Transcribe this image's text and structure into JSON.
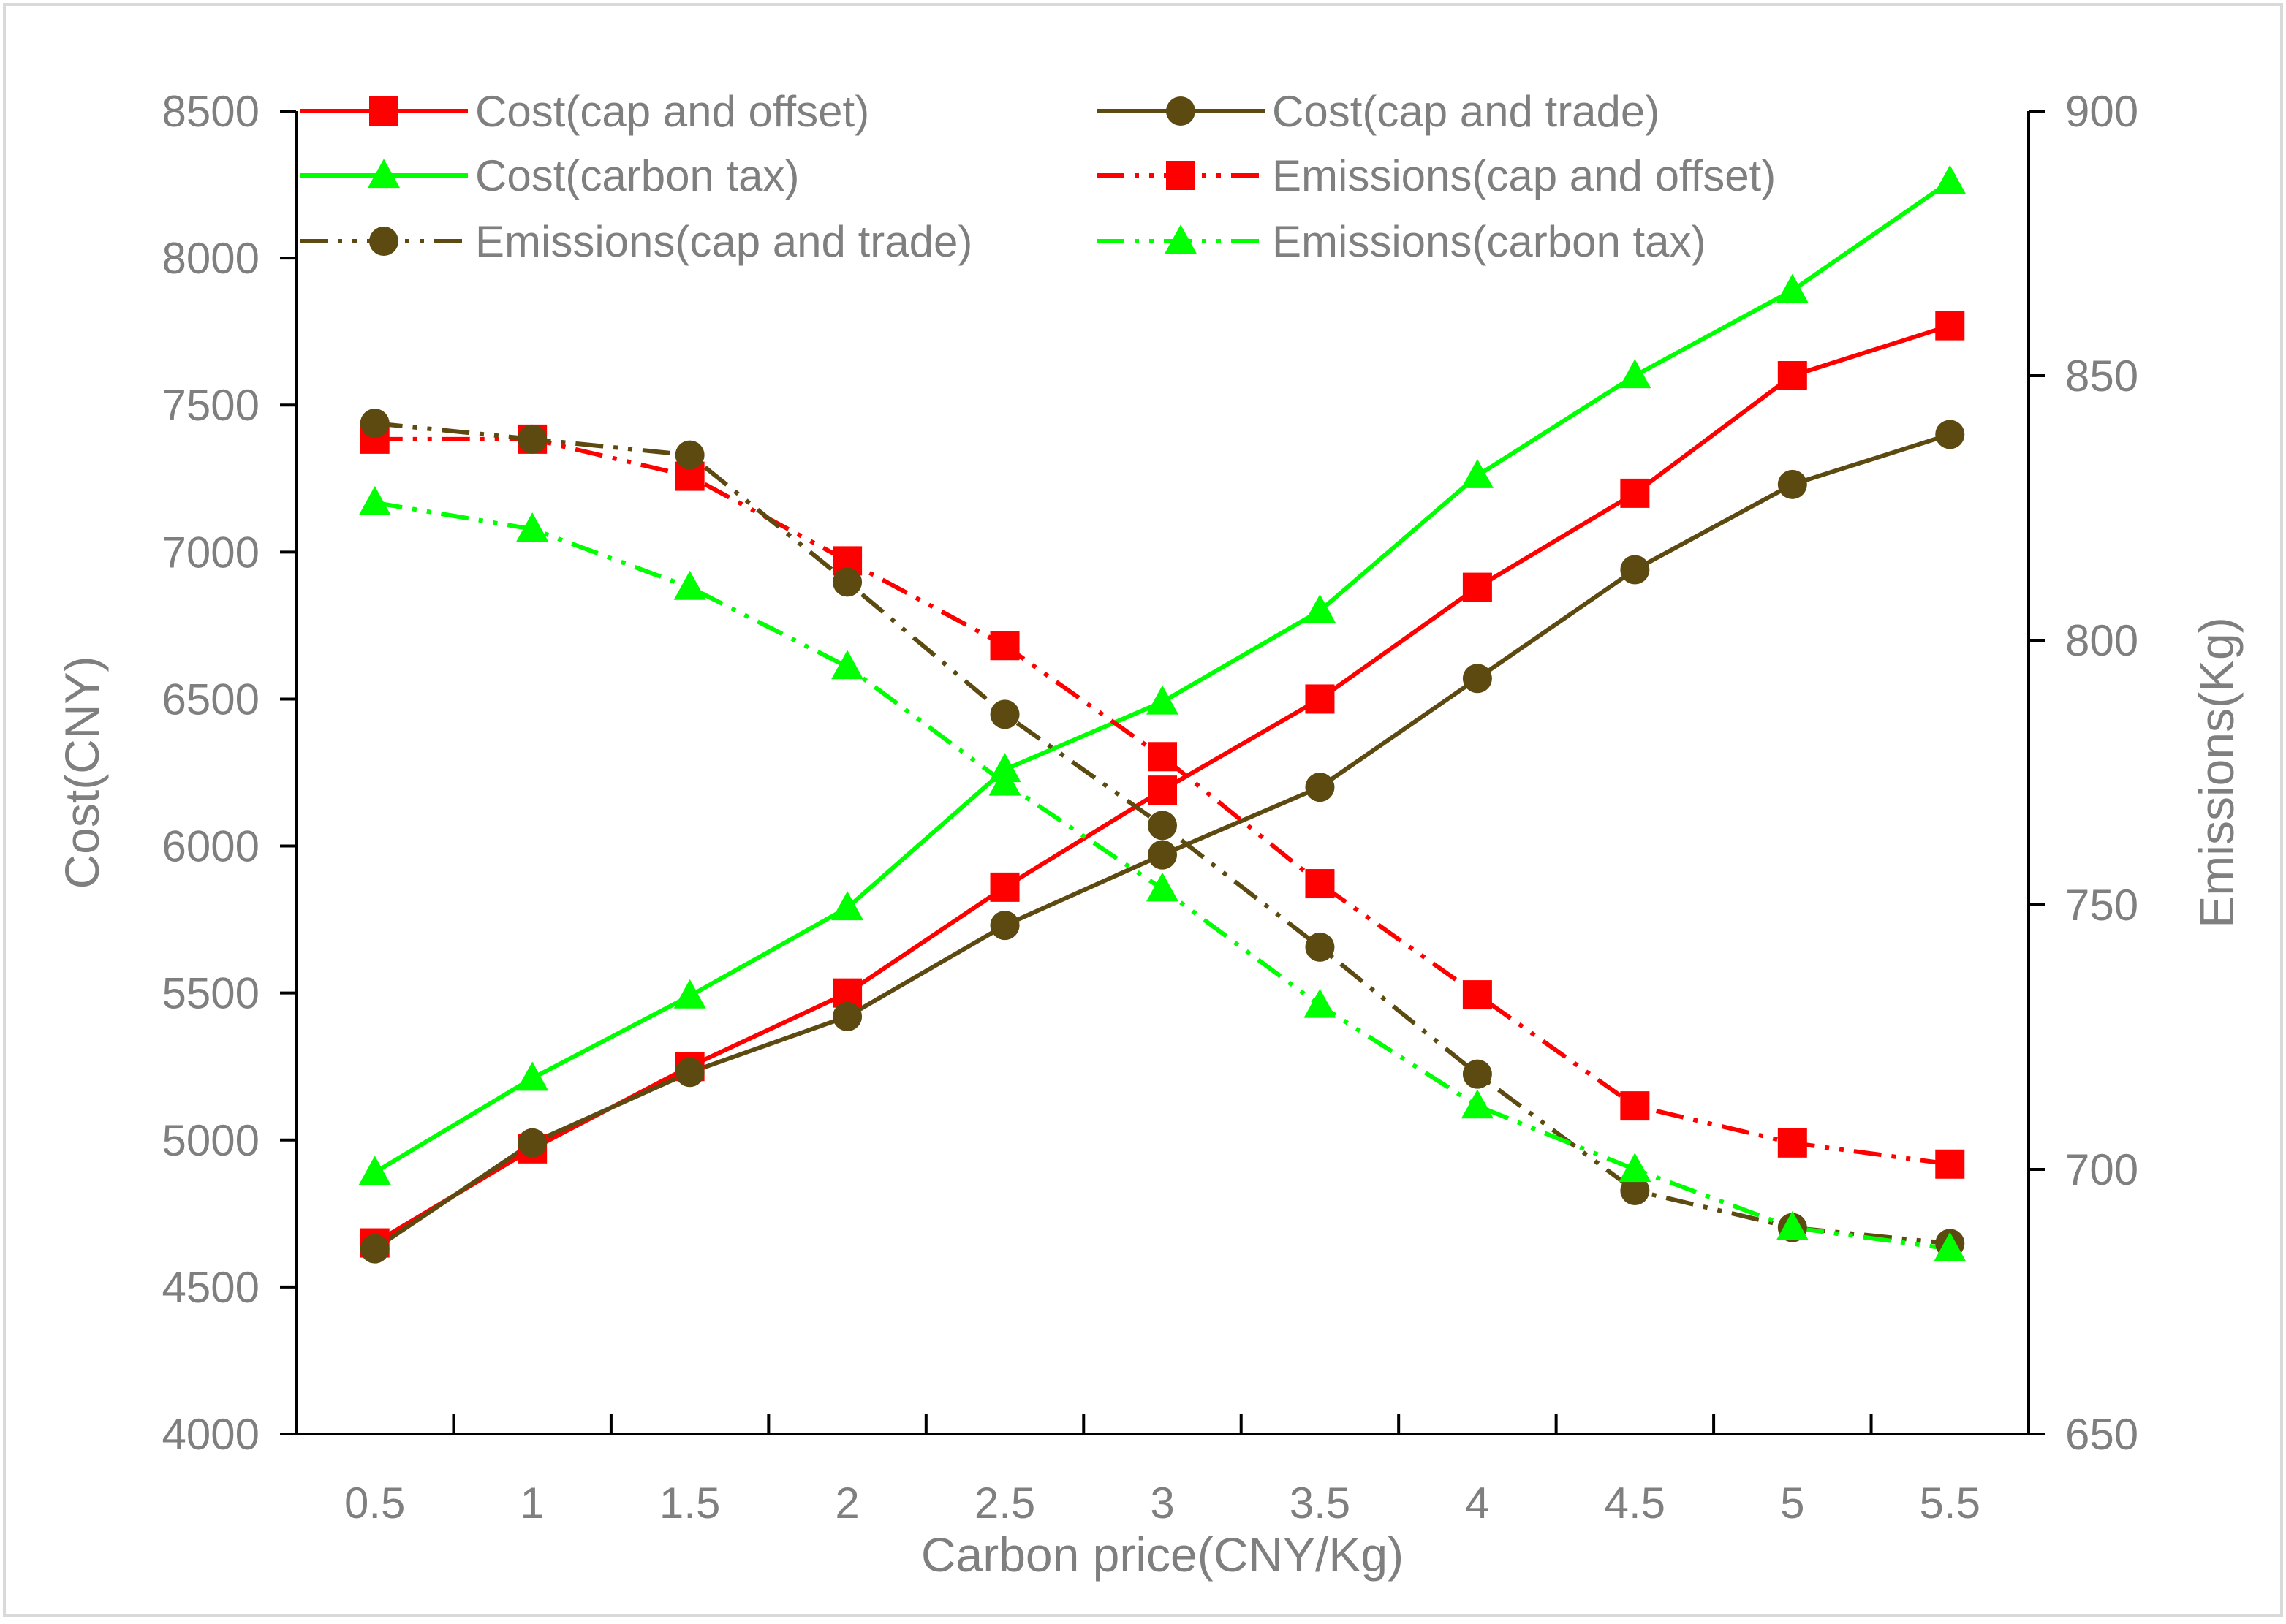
{
  "chart_data": {
    "type": "line",
    "title": "",
    "xlabel": "Carbon price(CNY/Kg)",
    "ylabel_left": "Cost(CNY)",
    "ylabel_right": "Emissions(Kg)",
    "x": [
      0.5,
      1,
      1.5,
      2,
      2.5,
      3,
      3.5,
      4,
      4.5,
      5,
      5.5
    ],
    "x_tick_labels": [
      "0.5",
      "1",
      "1.5",
      "2",
      "2.5",
      "3",
      "3.5",
      "4",
      "4.5",
      "5",
      "5.5"
    ],
    "ylim_left": [
      4000,
      8500
    ],
    "y_ticks_left": [
      "4000",
      "4500",
      "5000",
      "5500",
      "6000",
      "6500",
      "7000",
      "7500",
      "8000",
      "8500"
    ],
    "ylim_right": [
      650,
      900
    ],
    "y_ticks_right": [
      "650",
      "700",
      "750",
      "800",
      "850",
      "900"
    ],
    "grid": false,
    "legend_position": "top",
    "series": [
      {
        "name": "Cost(cap and offset)",
        "axis": "left",
        "color": "#ff0000",
        "marker": "square",
        "line_style": "solid",
        "values": [
          4650,
          4970,
          5250,
          5500,
          5860,
          6190,
          6500,
          6880,
          7200,
          7600,
          7770
        ]
      },
      {
        "name": "Cost(cap and trade)",
        "axis": "left",
        "color": "#5c4a10",
        "marker": "circle",
        "line_style": "solid",
        "values": [
          4630,
          4990,
          5230,
          5420,
          5730,
          5970,
          6200,
          6570,
          6940,
          7230,
          7400
        ]
      },
      {
        "name": "Cost(carbon tax)",
        "axis": "left",
        "color": "#00ff00",
        "marker": "triangle",
        "line_style": "solid",
        "values": [
          4890,
          5210,
          5490,
          5790,
          6260,
          6490,
          6800,
          7260,
          7600,
          7890,
          8260
        ]
      },
      {
        "name": "Emissions(cap and offset)",
        "axis": "right",
        "color": "#ff0000",
        "marker": "square",
        "line_style": "dashdot",
        "values": [
          838,
          838,
          831,
          815,
          799,
          778,
          754,
          733,
          712,
          705,
          701
        ]
      },
      {
        "name": "Emissions(cap and trade)",
        "axis": "right",
        "color": "#5c4a10",
        "marker": "circle",
        "line_style": "dashdot",
        "values": [
          841,
          838,
          835,
          811,
          786,
          765,
          742,
          718,
          696,
          689,
          686
        ]
      },
      {
        "name": "Emissions(carbon tax)",
        "axis": "right",
        "color": "#00ff00",
        "marker": "triangle",
        "line_style": "dashdot",
        "values": [
          826,
          821,
          810,
          795,
          773,
          753,
          731,
          712,
          700,
          689,
          685
        ]
      }
    ]
  }
}
